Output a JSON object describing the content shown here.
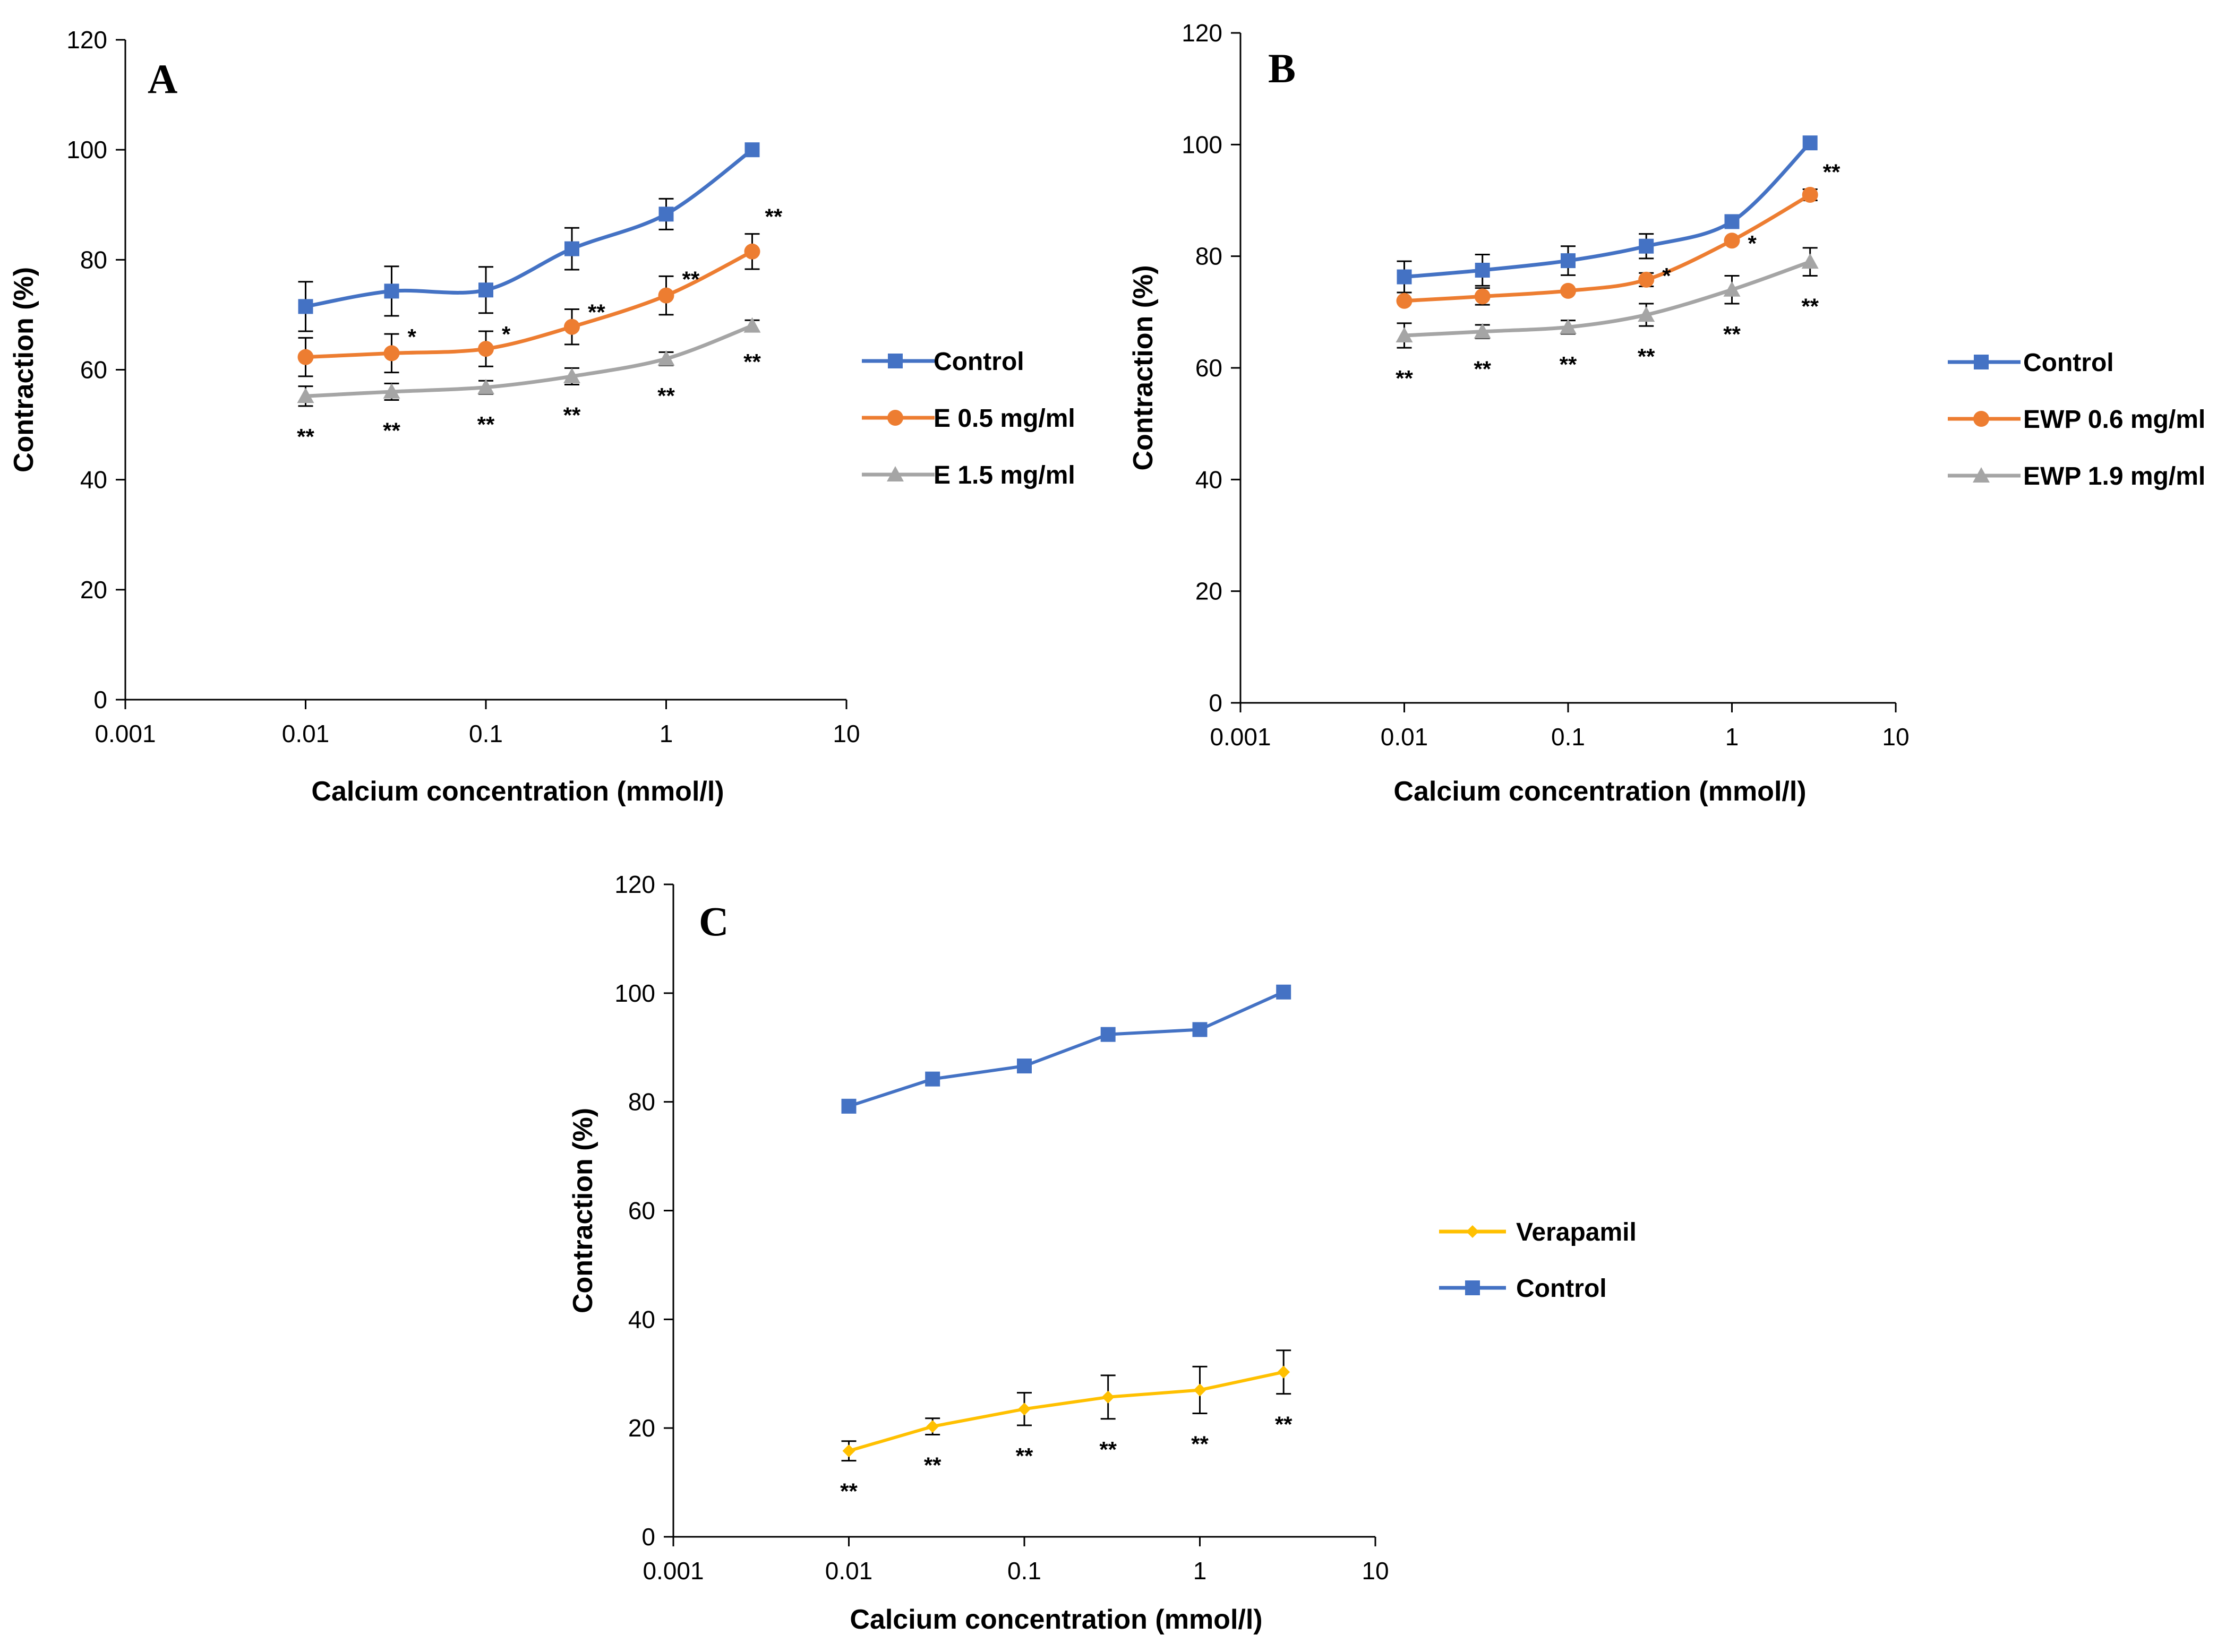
{
  "chart_data": [
    {
      "type": "line",
      "panel_label": "A",
      "xlabel": "Calcium concentration (mmol/l)",
      "ylabel": "Contraction (%)",
      "xscale": "log",
      "xlim": [
        0.001,
        10
      ],
      "ylim": [
        0,
        120
      ],
      "x_ticks": [
        0.001,
        0.01,
        0.1,
        1,
        10
      ],
      "x_tick_labels": [
        "0.001",
        "0.01",
        "0.1",
        "1",
        "10"
      ],
      "y_ticks": [
        0,
        20,
        40,
        60,
        80,
        100,
        120
      ],
      "y_tick_labels": [
        "0",
        "20",
        "40",
        "60",
        "80",
        "100",
        "120"
      ],
      "legend_position": "right",
      "x": [
        0.01,
        0.03,
        0.1,
        0.3,
        1,
        3
      ],
      "series": [
        {
          "name": "Control",
          "color": "#4472C4",
          "marker": "square",
          "values": [
            71.5,
            74.3,
            74.5,
            82,
            88.3,
            100
          ],
          "errors": [
            4.5,
            4.5,
            4.2,
            3.8,
            2.8,
            0
          ],
          "sig": [
            "",
            "",
            "",
            "",
            "",
            ""
          ]
        },
        {
          "name": "E 0.5 mg/ml",
          "color": "#ED7D31",
          "marker": "circle",
          "values": [
            62.3,
            63,
            63.8,
            67.8,
            73.5,
            81.5
          ],
          "errors": [
            3.5,
            3.5,
            3.2,
            3.2,
            3.5,
            3.2
          ],
          "sig": [
            "",
            "*",
            "*",
            "**",
            "**",
            "**"
          ]
        },
        {
          "name": "E 1.5 mg/ml",
          "color": "#A5A5A5",
          "marker": "triangle",
          "values": [
            55.2,
            56,
            56.8,
            58.8,
            62,
            68
          ],
          "errors": [
            1.8,
            1.5,
            1.2,
            1.5,
            1.2,
            1.0
          ],
          "sig": [
            "**",
            "**",
            "**",
            "**",
            "**",
            "**"
          ]
        }
      ]
    },
    {
      "type": "line",
      "panel_label": "B",
      "xlabel": "Calcium concentration (mmol/l)",
      "ylabel": "Contraction (%)",
      "xscale": "log",
      "xlim": [
        0.001,
        10
      ],
      "ylim": [
        0,
        120
      ],
      "x_ticks": [
        0.001,
        0.01,
        0.1,
        1,
        10
      ],
      "x_tick_labels": [
        "0.001",
        "0.01",
        "0.1",
        "1",
        "10"
      ],
      "y_ticks": [
        0,
        20,
        40,
        60,
        80,
        100,
        120
      ],
      "y_tick_labels": [
        "0",
        "20",
        "40",
        "60",
        "80",
        "100",
        "120"
      ],
      "legend_position": "right",
      "x": [
        0.01,
        0.03,
        0.1,
        0.3,
        1,
        3
      ],
      "series": [
        {
          "name": "Control",
          "color": "#4472C4",
          "marker": "square",
          "values": [
            76.3,
            77.5,
            79.2,
            81.8,
            86.2,
            100.3
          ],
          "errors": [
            2.8,
            2.8,
            2.6,
            2.2,
            0,
            0
          ],
          "sig": [
            "",
            "",
            "",
            "",
            "",
            ""
          ]
        },
        {
          "name": "EWP 0.6 mg/ml",
          "color": "#ED7D31",
          "marker": "circle",
          "values": [
            72,
            72.8,
            73.8,
            75.8,
            82.8,
            91
          ],
          "errors": [
            0,
            1.5,
            0,
            1.2,
            0,
            1.0
          ],
          "sig": [
            "",
            "",
            "",
            "*",
            "*",
            "**"
          ]
        },
        {
          "name": "EWP 1.9 mg/ml",
          "color": "#A5A5A5",
          "marker": "triangle",
          "values": [
            65.8,
            66.5,
            67.3,
            69.5,
            74,
            79
          ],
          "errors": [
            2.2,
            1.2,
            1.2,
            2.0,
            2.5,
            2.5
          ],
          "sig": [
            "**",
            "**",
            "**",
            "**",
            "**",
            "**"
          ]
        }
      ]
    },
    {
      "type": "line",
      "panel_label": "C",
      "xlabel": "Calcium concentration (mmol/l)",
      "ylabel": "Contraction (%)",
      "xscale": "log",
      "xlim": [
        0.001,
        10
      ],
      "ylim": [
        0,
        120
      ],
      "x_ticks": [
        0.001,
        0.01,
        0.1,
        1,
        10
      ],
      "x_tick_labels": [
        "0.001",
        "0.01",
        "0.1",
        "1",
        "10"
      ],
      "y_ticks": [
        0,
        20,
        40,
        60,
        80,
        100,
        120
      ],
      "y_tick_labels": [
        "0",
        "20",
        "40",
        "60",
        "80",
        "100",
        "120"
      ],
      "legend_position": "right",
      "x": [
        0.01,
        0.03,
        0.1,
        0.3,
        1,
        3
      ],
      "series": [
        {
          "name": "Verapamil",
          "color": "#FFC000",
          "marker": "diamond",
          "values": [
            15.8,
            20.3,
            23.5,
            25.7,
            27,
            30.3
          ],
          "errors": [
            1.8,
            1.5,
            3.0,
            4.0,
            4.3,
            4.0
          ],
          "sig": [
            "**",
            "**",
            "**",
            "**",
            "**",
            "**"
          ]
        },
        {
          "name": "Control",
          "color": "#4472C4",
          "marker": "square",
          "values": [
            79.2,
            84.2,
            86.6,
            92.4,
            93.3,
            100.2
          ],
          "errors": [
            0,
            0,
            0,
            0,
            0,
            0
          ],
          "sig": [
            "",
            "",
            "",
            "",
            "",
            ""
          ]
        }
      ]
    }
  ]
}
